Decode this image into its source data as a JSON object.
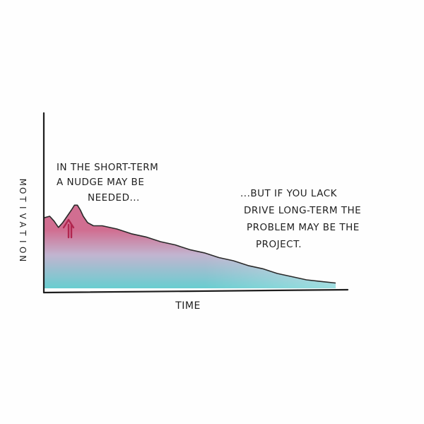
{
  "chart_data": {
    "type": "area",
    "title": "",
    "xlabel": "TIME",
    "ylabel": "MOTIVATION",
    "ylabel_glyphs": [
      "M",
      "O",
      "T",
      "I",
      "V",
      "A",
      "T",
      "I",
      "O",
      "N"
    ],
    "xlim": [
      0,
      100
    ],
    "ylim": [
      0,
      100
    ],
    "grid": false,
    "legend": "none",
    "colors": {
      "axis": "#1e1e1e",
      "curve": "#2a2a2a",
      "fill_high": "#c9557e",
      "fill_mid": "#b7a8c8",
      "fill_low": "#4ec5c8",
      "arrow": "#b1264f"
    },
    "series": [
      {
        "values": [
          [
            0,
            43
          ],
          [
            2,
            44
          ],
          [
            3.5,
            41
          ],
          [
            5,
            37
          ],
          [
            6.5,
            40
          ],
          [
            8,
            44
          ],
          [
            9.5,
            48
          ],
          [
            10.5,
            51
          ],
          [
            11.5,
            51
          ],
          [
            12.5,
            48
          ],
          [
            13.5,
            44
          ],
          [
            15,
            40
          ],
          [
            17,
            38
          ],
          [
            20,
            38
          ],
          [
            25,
            36
          ],
          [
            30,
            33
          ],
          [
            35,
            31
          ],
          [
            40,
            28
          ],
          [
            45,
            26
          ],
          [
            50,
            23
          ],
          [
            55,
            21
          ],
          [
            60,
            18
          ],
          [
            65,
            16
          ],
          [
            70,
            13
          ],
          [
            75,
            11
          ],
          [
            80,
            8
          ],
          [
            85,
            6
          ],
          [
            90,
            4
          ],
          [
            95,
            3
          ],
          [
            100,
            2
          ]
        ]
      }
    ],
    "annotations": [
      {
        "text": "IN THE SHORT-TERM A NUDGE MAY BE NEEDED...",
        "points_to": [
          11,
          47
        ],
        "marker": "up-arrow"
      },
      {
        "text": "...BUT IF YOU LACK DRIVE LONG-TERM THE PROBLEM MAY BE THE PROJECT.",
        "points_to": null,
        "marker": "none"
      }
    ]
  },
  "annotations": {
    "short_term": [
      "IN THE SHORT-TERM",
      "A NUDGE MAY BE",
      "NEEDED..."
    ],
    "long_term": [
      "...BUT IF YOU LACK",
      "DRIVE LONG-TERM THE",
      "PROBLEM MAY BE THE",
      "PROJECT."
    ]
  }
}
